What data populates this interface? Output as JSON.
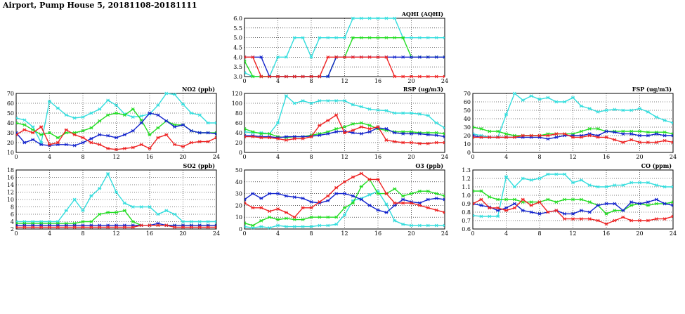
{
  "page": {
    "title": "Airport, Pump House 5, 20181108-20181111"
  },
  "colors": {
    "cyan": "#33dddd",
    "green": "#22dd22",
    "blue": "#1122cc",
    "red": "#ee2222"
  },
  "chart_data": [
    {
      "type": "line",
      "title": "AQHI (AQHI)",
      "grid": true,
      "xlim": [
        0,
        24
      ],
      "xticks": [
        "0",
        "4",
        "8",
        "12",
        "16",
        "20",
        "24"
      ],
      "ylim": [
        3,
        6
      ],
      "yticks": [
        "3.0",
        "3.5",
        "4.0",
        "4.5",
        "5.0",
        "5.5",
        "6.0"
      ],
      "x": [
        0,
        1,
        2,
        3,
        4,
        5,
        6,
        7,
        8,
        9,
        10,
        11,
        12,
        13,
        14,
        15,
        16,
        17,
        18,
        19,
        20,
        21,
        22,
        23,
        24
      ],
      "series": [
        {
          "color": "#33dddd",
          "values": [
            3.2,
            3,
            3,
            3,
            4,
            4,
            5,
            5,
            4,
            5,
            5,
            5,
            5,
            6,
            6,
            6,
            6,
            6,
            6,
            5,
            5,
            5,
            5,
            5,
            5
          ]
        },
        {
          "color": "#22dd22",
          "values": [
            3.8,
            3,
            3,
            3,
            3,
            3,
            3,
            3,
            3,
            3,
            3,
            4,
            4,
            5,
            5,
            5,
            5,
            5,
            5,
            5,
            4,
            4,
            4,
            4,
            4
          ]
        },
        {
          "color": "#1122cc",
          "values": [
            4,
            4,
            4,
            3,
            3,
            3,
            3,
            3,
            3,
            3,
            3,
            4,
            4,
            4,
            4,
            4,
            4,
            4,
            4,
            4,
            4,
            4,
            4,
            4,
            4
          ]
        },
        {
          "color": "#ee2222",
          "values": [
            4,
            4,
            3,
            3,
            3,
            3,
            3,
            3,
            3,
            3,
            4,
            4,
            4,
            4,
            4,
            4,
            4,
            4,
            3,
            3,
            3,
            3,
            3,
            3,
            3
          ]
        }
      ]
    },
    {
      "type": "line",
      "title": "NO2 (ppb)",
      "grid": true,
      "xlim": [
        0,
        24
      ],
      "xticks": [
        "0",
        "4",
        "8",
        "12",
        "16",
        "20",
        "24"
      ],
      "ylim": [
        10,
        70
      ],
      "yticks": [
        "10",
        "20",
        "30",
        "40",
        "50",
        "60",
        "70"
      ],
      "x": [
        0,
        1,
        2,
        3,
        4,
        5,
        6,
        7,
        8,
        9,
        10,
        11,
        12,
        13,
        14,
        15,
        16,
        17,
        18,
        19,
        20,
        21,
        22,
        23,
        24
      ],
      "series": [
        {
          "color": "#33dddd",
          "values": [
            45,
            43,
            36,
            20,
            62,
            55,
            48,
            45,
            46,
            50,
            54,
            63,
            58,
            49,
            46,
            47,
            49,
            58,
            70,
            69,
            59,
            50,
            48,
            40,
            40
          ]
        },
        {
          "color": "#22dd22",
          "values": [
            40,
            38,
            33,
            28,
            30,
            25,
            30,
            30,
            32,
            35,
            42,
            48,
            50,
            48,
            54,
            43,
            28,
            35,
            42,
            38,
            38,
            32,
            30,
            30,
            30
          ]
        },
        {
          "color": "#1122cc",
          "values": [
            30,
            20,
            23,
            18,
            17,
            18,
            18,
            17,
            20,
            24,
            28,
            27,
            25,
            28,
            32,
            40,
            50,
            48,
            42,
            36,
            38,
            32,
            30,
            30,
            29
          ]
        },
        {
          "color": "#ee2222",
          "values": [
            28,
            33,
            30,
            36,
            18,
            20,
            33,
            28,
            25,
            20,
            18,
            14,
            13,
            14,
            15,
            18,
            14,
            25,
            28,
            18,
            16,
            20,
            21,
            21,
            25
          ]
        }
      ]
    },
    {
      "type": "line",
      "title": "RSP (ug/m3)",
      "grid": true,
      "xlim": [
        0,
        24
      ],
      "xticks": [
        "0",
        "4",
        "8",
        "12",
        "16",
        "20",
        "24"
      ],
      "ylim": [
        0,
        120
      ],
      "yticks": [
        "0",
        "20",
        "40",
        "60",
        "80",
        "100",
        "120"
      ],
      "x": [
        0,
        1,
        2,
        3,
        4,
        5,
        6,
        7,
        8,
        9,
        10,
        11,
        12,
        13,
        14,
        15,
        16,
        17,
        18,
        19,
        20,
        21,
        22,
        23,
        24
      ],
      "series": [
        {
          "color": "#33dddd",
          "values": [
            42,
            40,
            40,
            38,
            60,
            115,
            100,
            105,
            100,
            105,
            105,
            105,
            105,
            97,
            93,
            88,
            86,
            85,
            80,
            80,
            80,
            78,
            75,
            60,
            50
          ]
        },
        {
          "color": "#22dd22",
          "values": [
            48,
            42,
            38,
            38,
            32,
            30,
            32,
            32,
            35,
            38,
            42,
            48,
            52,
            58,
            60,
            55,
            48,
            45,
            42,
            42,
            42,
            40,
            40,
            40,
            38
          ]
        },
        {
          "color": "#1122cc",
          "values": [
            34,
            34,
            32,
            32,
            30,
            32,
            32,
            32,
            33,
            35,
            38,
            42,
            43,
            40,
            38,
            42,
            50,
            48,
            40,
            38,
            38,
            38,
            36,
            35,
            32
          ]
        },
        {
          "color": "#ee2222",
          "values": [
            32,
            32,
            30,
            30,
            28,
            25,
            28,
            28,
            32,
            55,
            65,
            76,
            40,
            45,
            52,
            48,
            52,
            25,
            22,
            20,
            20,
            18,
            18,
            20,
            20
          ]
        }
      ]
    },
    {
      "type": "line",
      "title": "FSP (ug/m3)",
      "grid": true,
      "xlim": [
        0,
        24
      ],
      "xticks": [
        "0",
        "4",
        "8",
        "12",
        "16",
        "20",
        "24"
      ],
      "ylim": [
        0,
        70
      ],
      "yticks": [
        "0",
        "10",
        "20",
        "30",
        "40",
        "50",
        "60",
        "70"
      ],
      "x": [
        0,
        1,
        2,
        3,
        4,
        5,
        6,
        7,
        8,
        9,
        10,
        11,
        12,
        13,
        14,
        15,
        16,
        17,
        18,
        19,
        20,
        21,
        22,
        23,
        24
      ],
      "series": [
        {
          "color": "#33dddd",
          "values": [
            22,
            20,
            18,
            18,
            45,
            70,
            62,
            67,
            63,
            65,
            60,
            60,
            65,
            55,
            52,
            48,
            50,
            51,
            50,
            50,
            52,
            48,
            42,
            38,
            35
          ]
        },
        {
          "color": "#22dd22",
          "values": [
            30,
            28,
            25,
            25,
            22,
            20,
            20,
            20,
            20,
            22,
            22,
            22,
            22,
            25,
            28,
            28,
            25,
            25,
            25,
            25,
            25,
            24,
            24,
            24,
            22
          ]
        },
        {
          "color": "#1122cc",
          "values": [
            20,
            18,
            18,
            18,
            18,
            18,
            18,
            18,
            18,
            16,
            18,
            20,
            20,
            20,
            22,
            20,
            25,
            24,
            22,
            22,
            20,
            20,
            22,
            20,
            20
          ]
        },
        {
          "color": "#ee2222",
          "values": [
            18,
            18,
            18,
            18,
            18,
            18,
            20,
            20,
            20,
            20,
            22,
            22,
            18,
            18,
            20,
            18,
            18,
            15,
            12,
            15,
            12,
            12,
            12,
            14,
            12
          ]
        }
      ]
    },
    {
      "type": "line",
      "title": "SO2 (ppb)",
      "grid": true,
      "xlim": [
        0,
        24
      ],
      "xticks": [
        "0",
        "4",
        "8",
        "12",
        "16",
        "20",
        "24"
      ],
      "ylim": [
        2,
        18
      ],
      "yticks": [
        "2",
        "4",
        "6",
        "8",
        "10",
        "12",
        "14",
        "16",
        "18"
      ],
      "x": [
        0,
        1,
        2,
        3,
        4,
        5,
        6,
        7,
        8,
        9,
        10,
        11,
        12,
        13,
        14,
        15,
        16,
        17,
        18,
        19,
        20,
        21,
        22,
        23,
        24
      ],
      "series": [
        {
          "color": "#33dddd",
          "values": [
            4,
            4,
            4,
            4,
            4,
            4,
            7,
            10,
            7,
            11,
            13,
            17,
            12,
            9,
            8,
            8,
            8,
            6,
            7,
            6,
            4,
            4,
            4,
            4,
            4
          ]
        },
        {
          "color": "#22dd22",
          "values": [
            3.5,
            3.5,
            3.5,
            3.5,
            3.5,
            3.5,
            3.5,
            3.5,
            4,
            4,
            6,
            6.5,
            6.5,
            7,
            4,
            3,
            3,
            3,
            3,
            3,
            3,
            3,
            3,
            3,
            3
          ]
        },
        {
          "color": "#1122cc",
          "values": [
            3,
            3,
            3,
            3,
            3,
            3,
            3,
            3,
            3,
            3,
            3,
            3,
            3,
            3,
            3,
            3,
            3,
            3.5,
            3,
            3,
            3,
            3,
            3,
            3,
            3
          ]
        },
        {
          "color": "#ee2222",
          "values": [
            2.5,
            2.5,
            2.5,
            2.5,
            2.5,
            2.5,
            2.5,
            2.5,
            2.5,
            2.5,
            2.5,
            2.5,
            2.5,
            2.5,
            2.5,
            3,
            3,
            3,
            3,
            2.5,
            2.5,
            2.5,
            2.5,
            2.5,
            2.5
          ]
        }
      ]
    },
    {
      "type": "line",
      "title": "O3 (ppb)",
      "grid": true,
      "xlim": [
        0,
        24
      ],
      "xticks": [
        "0",
        "4",
        "8",
        "12",
        "16",
        "20",
        "24"
      ],
      "ylim": [
        0,
        50
      ],
      "yticks": [
        "0",
        "10",
        "20",
        "30",
        "40",
        "50"
      ],
      "x": [
        0,
        1,
        2,
        3,
        4,
        5,
        6,
        7,
        8,
        9,
        10,
        11,
        12,
        13,
        14,
        15,
        16,
        17,
        18,
        19,
        20,
        21,
        22,
        23,
        24
      ],
      "series": [
        {
          "color": "#33dddd",
          "values": [
            2,
            1,
            2,
            1,
            3,
            2,
            2,
            2,
            2,
            3,
            3,
            4,
            12,
            24,
            26,
            29,
            32,
            21,
            7,
            4,
            3,
            3,
            3,
            3,
            3
          ]
        },
        {
          "color": "#22dd22",
          "values": [
            5,
            3,
            7,
            10,
            8,
            9,
            8,
            8,
            10,
            10,
            10,
            10,
            18,
            22,
            36,
            42,
            30,
            30,
            34,
            28,
            30,
            32,
            32,
            30,
            28
          ]
        },
        {
          "color": "#1122cc",
          "values": [
            25,
            30,
            26,
            30,
            30,
            28,
            27,
            26,
            23,
            22,
            24,
            30,
            30,
            28,
            25,
            20,
            16,
            14,
            20,
            25,
            23,
            22,
            25,
            26,
            25
          ]
        },
        {
          "color": "#ee2222",
          "values": [
            22,
            18,
            18,
            15,
            17,
            14,
            10,
            18,
            18,
            23,
            28,
            35,
            40,
            44,
            47,
            42,
            42,
            30,
            22,
            22,
            22,
            20,
            18,
            16,
            14
          ]
        }
      ]
    },
    {
      "type": "line",
      "title": "CO (ppm)",
      "grid": true,
      "xlim": [
        0,
        24
      ],
      "xticks": [
        "0",
        "4",
        "8",
        "12",
        "16",
        "20",
        "24"
      ],
      "ylim": [
        0.6,
        1.3
      ],
      "yticks": [
        "0.6",
        "0.7",
        "0.8",
        "0.9",
        "1.0",
        "1.1",
        "1.2",
        "1.3"
      ],
      "x": [
        0,
        1,
        2,
        3,
        4,
        5,
        6,
        7,
        8,
        9,
        10,
        11,
        12,
        13,
        14,
        15,
        16,
        17,
        18,
        19,
        20,
        21,
        22,
        23,
        24
      ],
      "series": [
        {
          "color": "#33dddd",
          "values": [
            0.76,
            0.75,
            0.75,
            0.75,
            1.22,
            1.1,
            1.2,
            1.18,
            1.2,
            1.25,
            1.25,
            1.25,
            1.15,
            1.18,
            1.12,
            1.1,
            1.1,
            1.12,
            1.12,
            1.15,
            1.15,
            1.15,
            1.12,
            1.1,
            1.1
          ]
        },
        {
          "color": "#22dd22",
          "values": [
            1.05,
            1.05,
            0.98,
            0.95,
            0.95,
            0.95,
            0.92,
            0.92,
            0.92,
            0.95,
            0.92,
            0.95,
            0.95,
            0.95,
            0.92,
            0.88,
            0.78,
            0.82,
            0.82,
            0.88,
            0.9,
            0.88,
            0.9,
            0.9,
            0.92
          ]
        },
        {
          "color": "#1122cc",
          "values": [
            0.9,
            0.88,
            0.86,
            0.82,
            0.85,
            0.9,
            0.82,
            0.8,
            0.78,
            0.8,
            0.82,
            0.78,
            0.78,
            0.82,
            0.8,
            0.88,
            0.9,
            0.9,
            0.82,
            0.92,
            0.9,
            0.92,
            0.95,
            0.9,
            0.88
          ]
        },
        {
          "color": "#ee2222",
          "values": [
            0.9,
            0.95,
            0.85,
            0.85,
            0.82,
            0.85,
            0.95,
            0.88,
            0.92,
            0.8,
            0.82,
            0.72,
            0.72,
            0.72,
            0.72,
            0.7,
            0.66,
            0.7,
            0.74,
            0.7,
            0.7,
            0.7,
            0.72,
            0.72,
            0.75
          ]
        }
      ]
    }
  ]
}
